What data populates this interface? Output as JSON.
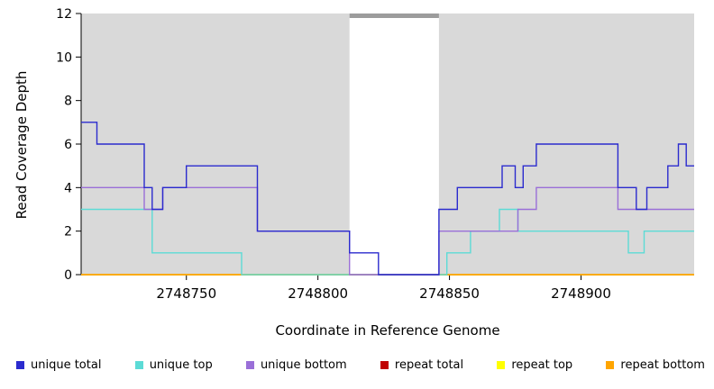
{
  "chart_data": {
    "type": "line",
    "subtype": "step-coverage",
    "title": "",
    "xlabel": "Coordinate in Reference Genome",
    "ylabel": "Read Coverage Depth",
    "xlim": [
      2748710,
      2748943
    ],
    "ylim": [
      0,
      12
    ],
    "x_ticks": [
      2748750,
      2748800,
      2748850,
      2748900
    ],
    "y_ticks": [
      0,
      2,
      4,
      6,
      8,
      10,
      12
    ],
    "grid": false,
    "legend_position": "bottom",
    "plot_background": "#D9D9D9",
    "figure_background": "#FFFFFF",
    "gap_region": {
      "x_start": 2748812,
      "x_end": 2748846,
      "fill": "#FFFFFF",
      "top_bar_color": "#9C9C9C"
    },
    "series": [
      {
        "name": "unique total",
        "color": "#2B2BCE",
        "z": 6,
        "step_points": [
          [
            2748710,
            7
          ],
          [
            2748716,
            6
          ],
          [
            2748734,
            4
          ],
          [
            2748737,
            3
          ],
          [
            2748741,
            4
          ],
          [
            2748750,
            5
          ],
          [
            2748777,
            2
          ],
          [
            2748812,
            1
          ],
          [
            2748823,
            0
          ],
          [
            2748846,
            3
          ],
          [
            2748853,
            4
          ],
          [
            2748870,
            5
          ],
          [
            2748875,
            4
          ],
          [
            2748878,
            5
          ],
          [
            2748883,
            6
          ],
          [
            2748914,
            4
          ],
          [
            2748921,
            3
          ],
          [
            2748925,
            4
          ],
          [
            2748933,
            5
          ],
          [
            2748937,
            6
          ],
          [
            2748940,
            5
          ]
        ]
      },
      {
        "name": "unique top",
        "color": "#5CDBD6",
        "z": 4,
        "step_points": [
          [
            2748710,
            3
          ],
          [
            2748737,
            1
          ],
          [
            2748771,
            0
          ],
          [
            2748849,
            1
          ],
          [
            2748858,
            2
          ],
          [
            2748869,
            3
          ],
          [
            2748876,
            2
          ],
          [
            2748918,
            1
          ],
          [
            2748924,
            2
          ]
        ]
      },
      {
        "name": "unique bottom",
        "color": "#9A6FD8",
        "z": 5,
        "step_points": [
          [
            2748710,
            4
          ],
          [
            2748734,
            3
          ],
          [
            2748741,
            4
          ],
          [
            2748777,
            2
          ],
          [
            2748812,
            0
          ],
          [
            2748846,
            2
          ],
          [
            2748876,
            3
          ],
          [
            2748883,
            4
          ],
          [
            2748914,
            3
          ]
        ]
      },
      {
        "name": "repeat total",
        "color": "#C00000",
        "z": 1,
        "step_points": [
          [
            2748710,
            0
          ]
        ]
      },
      {
        "name": "repeat top",
        "color": "#FFFF00",
        "z": 2,
        "step_points": [
          [
            2748710,
            0
          ]
        ]
      },
      {
        "name": "repeat bottom",
        "color": "#FFA500",
        "z": 3,
        "step_points": [
          [
            2748710,
            0
          ]
        ]
      }
    ]
  }
}
